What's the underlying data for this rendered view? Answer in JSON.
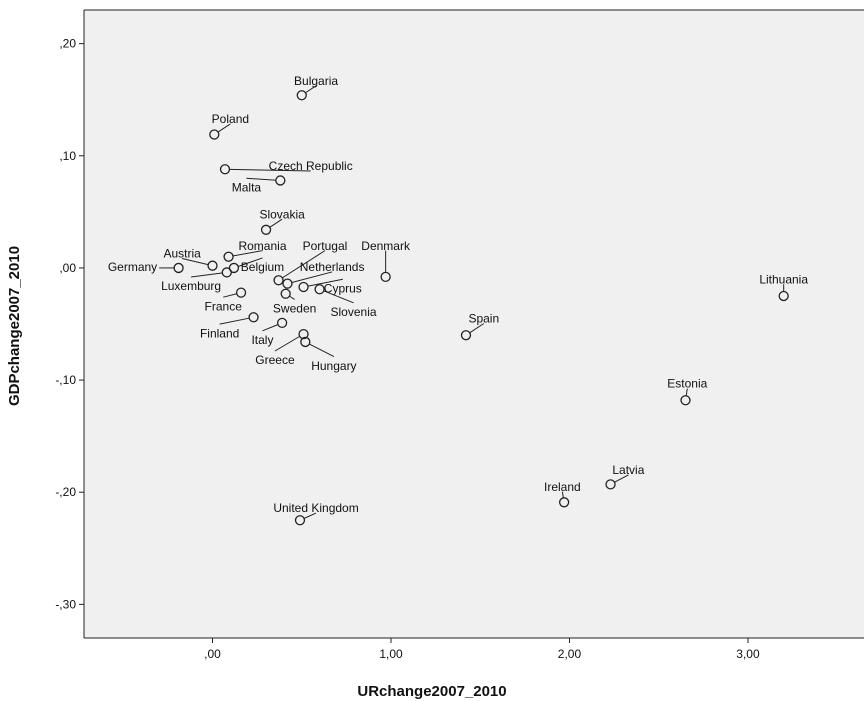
{
  "chart_data": {
    "type": "scatter",
    "title": "",
    "xlabel": "URchange2007_2010",
    "ylabel": "GDPchange2007_2010",
    "xlim": [
      -0.72,
      3.65
    ],
    "ylim": [
      -0.33,
      0.23
    ],
    "x_ticks": [
      0,
      1,
      2,
      3
    ],
    "x_tick_labels": [
      ",00",
      "1,00",
      "2,00",
      "3,00"
    ],
    "y_ticks": [
      -0.3,
      -0.2,
      -0.1,
      0.0,
      0.1,
      0.2
    ],
    "y_tick_labels": [
      "-,30",
      "-,20",
      "-,10",
      ",00",
      ",10",
      ",20"
    ],
    "grid": false,
    "background": "#f0f0f0",
    "marker_color": "#222222",
    "points": [
      {
        "label": "Bulgaria",
        "x": 0.5,
        "y": 0.154,
        "lab": [
          0.58,
          0.166
        ],
        "anchor": "middle"
      },
      {
        "label": "Poland",
        "x": 0.01,
        "y": 0.119,
        "lab": [
          0.1,
          0.132
        ],
        "anchor": "middle"
      },
      {
        "label": "Czech Republic",
        "x": 0.07,
        "y": 0.088,
        "lab": [
          0.55,
          0.09
        ],
        "anchor": "middle"
      },
      {
        "label": "Malta",
        "x": 0.38,
        "y": 0.078,
        "lab": [
          0.19,
          0.071
        ],
        "anchor": "middle"
      },
      {
        "label": "Slovakia",
        "x": 0.3,
        "y": 0.034,
        "lab": [
          0.39,
          0.047
        ],
        "anchor": "middle"
      },
      {
        "label": "Austria",
        "x": 0.0,
        "y": 0.002,
        "lab": [
          -0.17,
          0.012
        ],
        "anchor": "middle"
      },
      {
        "label": "Germany",
        "x": -0.19,
        "y": 0.0,
        "lab": [
          -0.31,
          0.0
        ],
        "anchor": "end",
        "leader": true
      },
      {
        "label": "Romania",
        "x": 0.09,
        "y": 0.01,
        "lab": [
          0.28,
          0.019
        ],
        "anchor": "middle"
      },
      {
        "label": "Portugal",
        "x": 0.37,
        "y": -0.011,
        "lab": [
          0.63,
          0.019
        ],
        "anchor": "middle",
        "leader": true
      },
      {
        "label": "Denmark",
        "x": 0.97,
        "y": -0.008,
        "lab": [
          0.97,
          0.019
        ],
        "anchor": "middle",
        "leader": true
      },
      {
        "label": "Belgium",
        "x": 0.12,
        "y": 0.0,
        "lab": [
          0.28,
          0.0
        ],
        "anchor": "middle"
      },
      {
        "label": "Netherlands",
        "x": 0.42,
        "y": -0.014,
        "lab": [
          0.67,
          0.0
        ],
        "anchor": "middle"
      },
      {
        "label": "Luxemburg",
        "x": 0.08,
        "y": -0.004,
        "lab": [
          -0.12,
          -0.017
        ],
        "anchor": "middle"
      },
      {
        "label": "Cyprus",
        "x": 0.51,
        "y": -0.017,
        "lab": [
          0.73,
          -0.019
        ],
        "anchor": "middle"
      },
      {
        "label": "Lithuania",
        "x": 3.2,
        "y": -0.025,
        "lab": [
          3.2,
          -0.011
        ],
        "anchor": "middle"
      },
      {
        "label": "France",
        "x": 0.16,
        "y": -0.022,
        "lab": [
          0.06,
          -0.035
        ],
        "anchor": "middle"
      },
      {
        "label": "Sweden",
        "x": 0.41,
        "y": -0.023,
        "lab": [
          0.46,
          -0.037
        ],
        "anchor": "middle"
      },
      {
        "label": "Slovenia",
        "x": 0.6,
        "y": -0.019,
        "lab": [
          0.79,
          -0.04
        ],
        "anchor": "middle",
        "leader": true
      },
      {
        "label": "Spain",
        "x": 1.42,
        "y": -0.06,
        "lab": [
          1.52,
          -0.046
        ],
        "anchor": "middle",
        "leader": true
      },
      {
        "label": "Finland",
        "x": 0.23,
        "y": -0.044,
        "lab": [
          0.04,
          -0.059
        ],
        "anchor": "middle"
      },
      {
        "label": "Italy",
        "x": 0.39,
        "y": -0.049,
        "lab": [
          0.28,
          -0.065
        ],
        "anchor": "middle"
      },
      {
        "label": "Greece",
        "x": 0.51,
        "y": -0.059,
        "lab": [
          0.35,
          -0.083
        ],
        "anchor": "middle"
      },
      {
        "label": "Hungary",
        "x": 0.52,
        "y": -0.066,
        "lab": [
          0.68,
          -0.088
        ],
        "anchor": "middle",
        "leader": true
      },
      {
        "label": "Estonia",
        "x": 2.65,
        "y": -0.118,
        "lab": [
          2.66,
          -0.104
        ],
        "anchor": "middle"
      },
      {
        "label": "Latvia",
        "x": 2.23,
        "y": -0.193,
        "lab": [
          2.33,
          -0.181
        ],
        "anchor": "middle"
      },
      {
        "label": "Ireland",
        "x": 1.97,
        "y": -0.209,
        "lab": [
          1.96,
          -0.196
        ],
        "anchor": "middle"
      },
      {
        "label": "United Kingdom",
        "x": 0.49,
        "y": -0.225,
        "lab": [
          0.58,
          -0.215
        ],
        "anchor": "middle",
        "leader": true
      }
    ]
  }
}
